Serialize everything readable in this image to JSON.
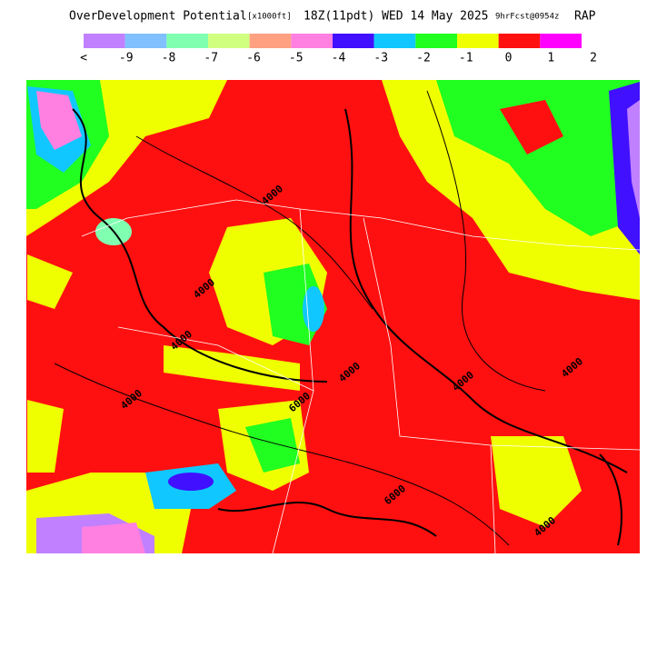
{
  "header": {
    "product": "OverDevelopment Potential",
    "units": "[x1000ft]",
    "valid": "18Z(11pdt) WED 14 May 2025",
    "forecast": "9hrFcst@0954z",
    "model": "RAP"
  },
  "colorbar": {
    "colors": [
      "#c080ff",
      "#80c0ff",
      "#80ffb0",
      "#d0ff80",
      "#ffa080",
      "#ff80e0",
      "#4010ff",
      "#10c8ff",
      "#20ff20",
      "#f0ff00",
      "#ff1010",
      "#ff00ff"
    ],
    "labels": [
      "<",
      "-9",
      "-8",
      "-7",
      "-6",
      "-5",
      "-4",
      "-3",
      "-2",
      "-1",
      "0",
      "1",
      "2"
    ]
  },
  "contour_labels": [
    "4000",
    "4000",
    "4000",
    "4000",
    "6000",
    "4000",
    "4000",
    "4000",
    "6000",
    "4000"
  ]
}
